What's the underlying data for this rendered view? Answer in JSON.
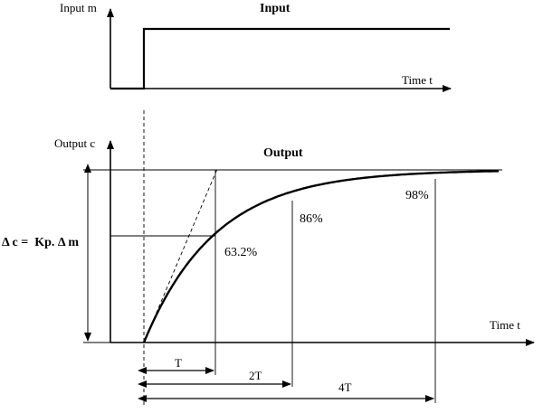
{
  "input_plot": {
    "title": "Input",
    "y_axis_label": "Input m",
    "x_axis_label": "Time t"
  },
  "output_plot": {
    "title": "Output",
    "y_axis_label": "Output c",
    "x_axis_label": "Time t",
    "gain_label": "Δ c =  Kp. Δ m",
    "percent_labels": [
      "63.2%",
      "86%",
      "98%"
    ],
    "time_constant_labels": [
      "T",
      "2T",
      "4T"
    ]
  }
}
